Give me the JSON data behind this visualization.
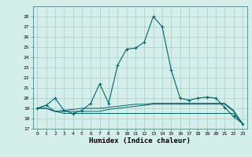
{
  "xlabel": "Humidex (Indice chaleur)",
  "bg_color": "#d4eeea",
  "grid_color": "#a8ccc8",
  "line_color": "#006666",
  "xlim": [
    -0.5,
    23.5
  ],
  "ylim": [
    17,
    29
  ],
  "yticks": [
    17,
    18,
    19,
    20,
    21,
    22,
    23,
    24,
    25,
    26,
    27,
    28
  ],
  "xticks": [
    0,
    1,
    2,
    3,
    4,
    5,
    6,
    7,
    8,
    9,
    10,
    11,
    12,
    13,
    14,
    15,
    16,
    17,
    18,
    19,
    20,
    21,
    22,
    23
  ],
  "series": [
    [
      19.0,
      19.3,
      20.0,
      18.8,
      18.5,
      18.8,
      19.5,
      21.4,
      19.5,
      23.2,
      24.8,
      24.9,
      25.5,
      28.0,
      27.0,
      22.8,
      20.0,
      19.8,
      20.0,
      20.1,
      20.0,
      19.1,
      18.2,
      17.5
    ],
    [
      19.0,
      19.3,
      18.7,
      18.7,
      18.7,
      18.7,
      18.7,
      18.7,
      18.9,
      19.0,
      19.1,
      19.2,
      19.3,
      19.4,
      19.4,
      19.4,
      19.4,
      19.4,
      19.4,
      19.4,
      19.4,
      19.4,
      18.7,
      17.5
    ],
    [
      19.0,
      19.0,
      18.7,
      18.5,
      18.5,
      18.5,
      18.5,
      18.5,
      18.5,
      18.5,
      18.5,
      18.5,
      18.5,
      18.5,
      18.5,
      18.5,
      18.5,
      18.5,
      18.5,
      18.5,
      18.5,
      18.5,
      18.5,
      17.5
    ],
    [
      19.0,
      19.0,
      18.7,
      18.8,
      18.9,
      19.0,
      19.0,
      19.0,
      19.1,
      19.2,
      19.3,
      19.4,
      19.4,
      19.5,
      19.5,
      19.5,
      19.5,
      19.5,
      19.5,
      19.5,
      19.5,
      19.5,
      18.8,
      17.5
    ]
  ]
}
